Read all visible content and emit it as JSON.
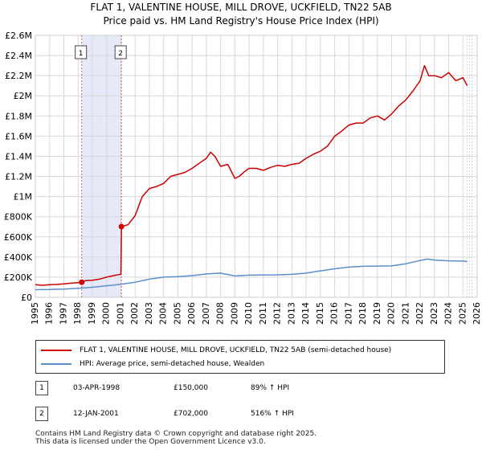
{
  "chart_data": {
    "type": "line",
    "title": "FLAT 1, VALENTINE HOUSE, MILL DROVE, UCKFIELD, TN22 5AB",
    "subtitle": "Price paid vs. HM Land Registry's House Price Index (HPI)",
    "xlim": [
      1995,
      2026
    ],
    "ylim": [
      0,
      2600000
    ],
    "x_ticks": [
      "1995",
      "1996",
      "1997",
      "1998",
      "1999",
      "2000",
      "2001",
      "2002",
      "2003",
      "2004",
      "2005",
      "2006",
      "2007",
      "2008",
      "2009",
      "2010",
      "2011",
      "2012",
      "2013",
      "2014",
      "2015",
      "2016",
      "2017",
      "2018",
      "2019",
      "2020",
      "2021",
      "2022",
      "2023",
      "2024",
      "2025",
      "2026"
    ],
    "y_ticks": [
      {
        "value": 0,
        "label": "£0"
      },
      {
        "value": 200000,
        "label": "£200K"
      },
      {
        "value": 400000,
        "label": "£400K"
      },
      {
        "value": 600000,
        "label": "£600K"
      },
      {
        "value": 800000,
        "label": "£800K"
      },
      {
        "value": 1000000,
        "label": "£1M"
      },
      {
        "value": 1200000,
        "label": "£1.2M"
      },
      {
        "value": 1400000,
        "label": "£1.4M"
      },
      {
        "value": 1600000,
        "label": "£1.6M"
      },
      {
        "value": 1800000,
        "label": "£1.8M"
      },
      {
        "value": 2000000,
        "label": "£2M"
      },
      {
        "value": 2200000,
        "label": "£2.2M"
      },
      {
        "value": 2400000,
        "label": "£2.4M"
      },
      {
        "value": 2600000,
        "label": "£2.6M"
      }
    ],
    "series": [
      {
        "name": "FLAT 1, VALENTINE HOUSE, MILL DROVE, UCKFIELD, TN22 5AB (semi-detached house)",
        "color": "#cc0000",
        "x": [
          1995.0,
          1995.5,
          1996.0,
          1996.5,
          1997.0,
          1997.5,
          1998.0,
          1998.25,
          1998.5,
          1999.0,
          1999.5,
          2000.0,
          2000.5,
          2001.0,
          2001.04,
          2001.5,
          2002.0,
          2002.5,
          2003.0,
          2003.5,
          2004.0,
          2004.5,
          2005.0,
          2005.5,
          2006.0,
          2006.5,
          2007.0,
          2007.3,
          2007.6,
          2008.0,
          2008.5,
          2009.0,
          2009.3,
          2009.7,
          2010.0,
          2010.5,
          2011.0,
          2011.5,
          2012.0,
          2012.5,
          2013.0,
          2013.5,
          2014.0,
          2014.5,
          2015.0,
          2015.5,
          2016.0,
          2016.5,
          2017.0,
          2017.5,
          2018.0,
          2018.5,
          2019.0,
          2019.5,
          2020.0,
          2020.5,
          2021.0,
          2021.5,
          2022.0,
          2022.3,
          2022.6,
          2023.0,
          2023.5,
          2024.0,
          2024.5,
          2025.0,
          2025.3
        ],
        "values": [
          125000,
          120000,
          125000,
          128000,
          133000,
          140000,
          145000,
          150000,
          165000,
          170000,
          180000,
          200000,
          215000,
          230000,
          702000,
          720000,
          810000,
          1000000,
          1080000,
          1100000,
          1130000,
          1200000,
          1220000,
          1240000,
          1280000,
          1330000,
          1380000,
          1440000,
          1400000,
          1300000,
          1320000,
          1180000,
          1200000,
          1250000,
          1280000,
          1280000,
          1260000,
          1290000,
          1310000,
          1300000,
          1320000,
          1330000,
          1380000,
          1420000,
          1450000,
          1500000,
          1600000,
          1650000,
          1710000,
          1730000,
          1730000,
          1780000,
          1800000,
          1760000,
          1820000,
          1900000,
          1960000,
          2050000,
          2150000,
          2300000,
          2200000,
          2200000,
          2180000,
          2230000,
          2150000,
          2180000,
          2100000
        ]
      },
      {
        "name": "HPI: Average price, semi-detached house, Wealden",
        "color": "#5b8fcc",
        "x": [
          1995,
          1996,
          1997,
          1998,
          1999,
          2000,
          2001,
          2002,
          2003,
          2004,
          2005,
          2006,
          2007,
          2008,
          2009,
          2010,
          2011,
          2012,
          2013,
          2014,
          2015,
          2016,
          2017,
          2018,
          2019,
          2020,
          2021,
          2022,
          2022.5,
          2023,
          2024,
          2025,
          2025.3
        ],
        "values": [
          76000,
          77000,
          82000,
          90000,
          100000,
          115000,
          130000,
          150000,
          180000,
          200000,
          205000,
          215000,
          232000,
          240000,
          212000,
          220000,
          222000,
          223000,
          228000,
          240000,
          262000,
          283000,
          300000,
          308000,
          310000,
          312000,
          333000,
          365000,
          380000,
          370000,
          362000,
          360000,
          355000
        ]
      }
    ],
    "sales": [
      {
        "id": "1",
        "x": 1998.25,
        "value": 150000,
        "date": "03-APR-1998",
        "price": "£150,000",
        "hpi": "89% ↑ HPI"
      },
      {
        "id": "2",
        "x": 2001.04,
        "value": 702000,
        "date": "12-JAN-2001",
        "price": "£702,000",
        "hpi": "516% ↑ HPI"
      }
    ],
    "shaded_period": [
      1998.25,
      2001.04
    ],
    "grid": true
  },
  "legend": {
    "red_label": "FLAT 1, VALENTINE HOUSE, MILL DROVE, UCKFIELD, TN22 5AB (semi-detached house)",
    "blue_label": "HPI: Average price, semi-detached house, Wealden"
  },
  "footer": {
    "line1": "Contains HM Land Registry data © Crown copyright and database right 2025.",
    "line2": "This data is licensed under the Open Government Licence v3.0."
  }
}
